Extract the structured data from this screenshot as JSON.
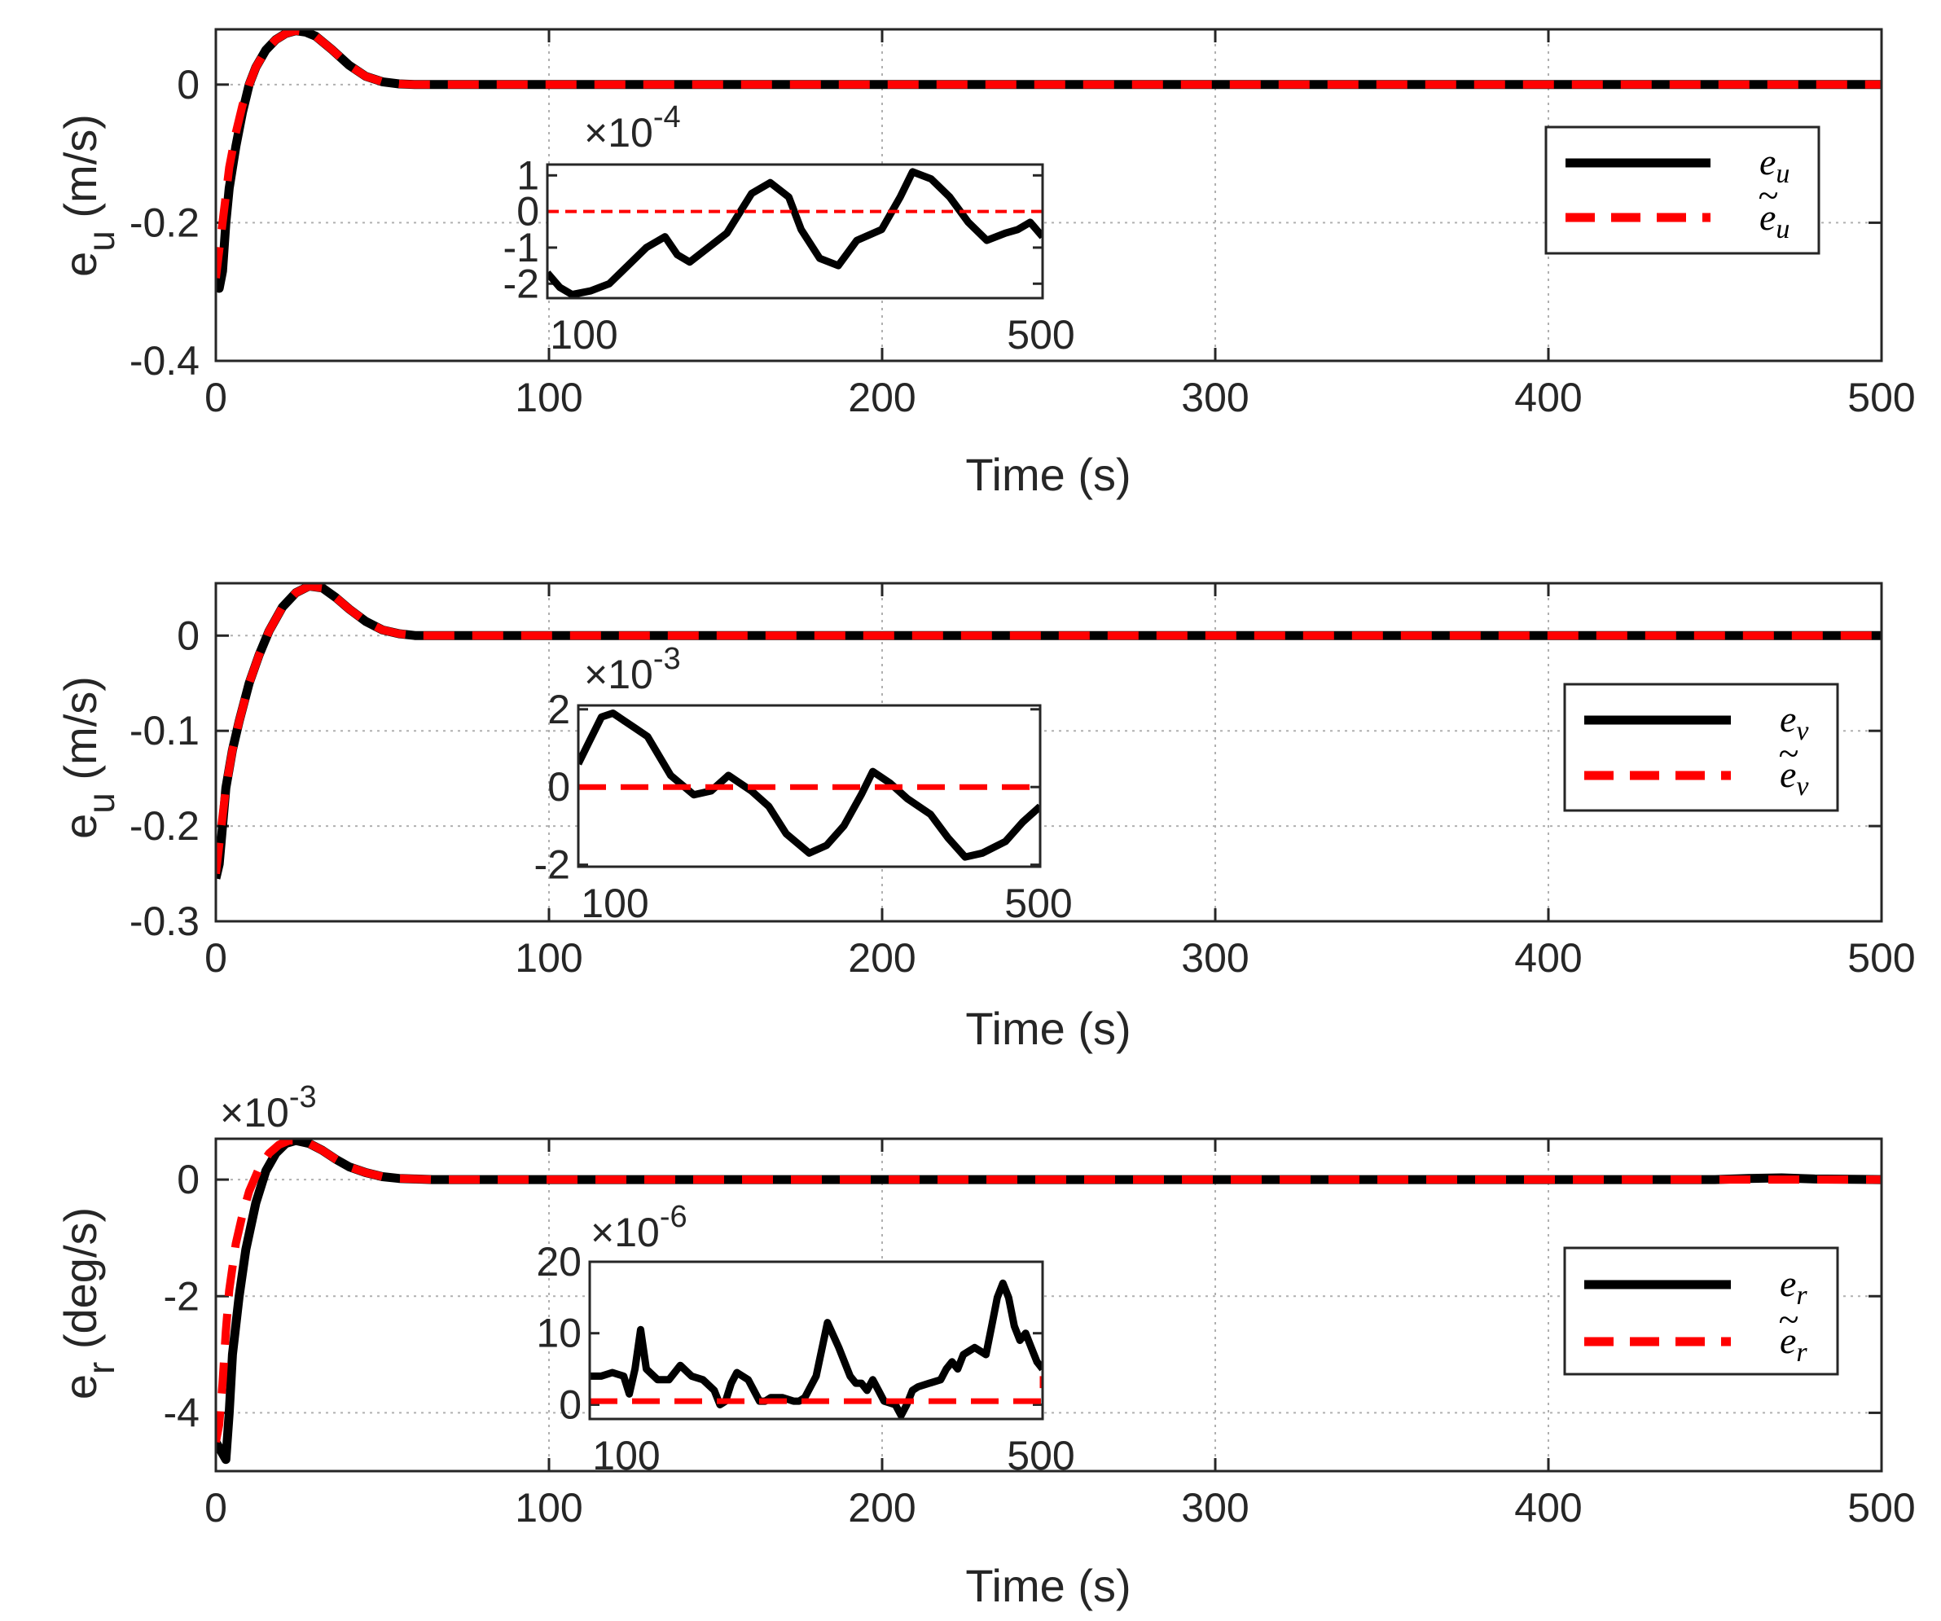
{
  "figure": {
    "colors": {
      "actual": "#000000",
      "estimate": "#ff0000",
      "grid": "#b0b0b0",
      "axis": "#262626"
    }
  },
  "chart_data": [
    {
      "type": "line",
      "id": "eu",
      "xlabel": "Time (s)",
      "ylabel_main": "e",
      "ylabel_sub": "u",
      "ylabel_unit": " (m/s)",
      "xlim": [
        0,
        500
      ],
      "ylim": [
        -0.4,
        0.08
      ],
      "xticks": [
        0,
        100,
        200,
        300,
        400,
        500
      ],
      "xtick_labels": [
        "0",
        "100",
        "200",
        "300",
        "400",
        "500"
      ],
      "yticks": [
        0,
        -0.2,
        -0.4
      ],
      "ytick_labels": [
        "0",
        "-0.2",
        "-0.4"
      ],
      "grid": true,
      "legend_position": "right",
      "series": [
        {
          "name": "e_u",
          "legend_base": "e",
          "legend_sub": "u",
          "tilde": false,
          "style": "solid",
          "x": [
            0,
            1,
            2,
            3,
            4,
            6,
            8,
            10,
            12,
            15,
            18,
            21,
            24,
            27,
            30,
            35,
            40,
            45,
            50,
            55,
            60,
            100,
            200,
            300,
            400,
            500
          ],
          "y": [
            -0.29,
            -0.295,
            -0.27,
            -0.2,
            -0.15,
            -0.09,
            -0.04,
            0.0,
            0.025,
            0.05,
            0.065,
            0.074,
            0.078,
            0.076,
            0.07,
            0.05,
            0.028,
            0.012,
            0.004,
            0.001,
            0.0,
            0.0,
            0.0,
            0.0,
            0.0,
            0.0
          ]
        },
        {
          "name": "e_u estimate",
          "legend_base": "e",
          "legend_sub": "u",
          "tilde": true,
          "style": "dashed",
          "x": [
            0,
            1,
            2,
            3,
            4,
            6,
            8,
            10,
            12,
            15,
            18,
            21,
            24,
            27,
            30,
            35,
            40,
            45,
            50,
            55,
            60,
            100,
            200,
            300,
            400,
            500
          ],
          "y": [
            -0.28,
            -0.24,
            -0.2,
            -0.16,
            -0.12,
            -0.07,
            -0.03,
            0.0,
            0.025,
            0.05,
            0.065,
            0.074,
            0.078,
            0.076,
            0.07,
            0.05,
            0.028,
            0.012,
            0.004,
            0.001,
            0.0,
            0.0,
            0.0,
            0.0,
            0.0,
            0.0
          ]
        }
      ],
      "inset": {
        "multiplier_base": "×10",
        "multiplier_exp": "-4",
        "xlim": [
          100,
          500
        ],
        "ylim": [
          -2.4,
          1.3
        ],
        "xtick_labels": [
          "100",
          "500"
        ],
        "yticks": [
          1,
          0,
          -1,
          -2
        ],
        "ytick_labels": [
          "1",
          "0",
          "-1",
          "-2"
        ],
        "series": [
          {
            "style": "solid",
            "x": [
              100,
              110,
              120,
              135,
              150,
              165,
              180,
              195,
              205,
              215,
              230,
              245,
              265,
              280,
              295,
              305,
              320,
              335,
              350,
              370,
              385,
              395,
              410,
              425,
              440,
              455,
              470,
              480,
              490,
              500
            ],
            "y": [
              -1.7,
              -2.1,
              -2.3,
              -2.2,
              -2.0,
              -1.5,
              -1.0,
              -0.7,
              -1.2,
              -1.4,
              -1.0,
              -0.6,
              0.5,
              0.8,
              0.4,
              -0.5,
              -1.3,
              -1.5,
              -0.8,
              -0.5,
              0.4,
              1.1,
              0.9,
              0.4,
              -0.3,
              -0.8,
              -0.6,
              -0.5,
              -0.3,
              -0.7
            ]
          },
          {
            "style": "dashed",
            "x": [
              100,
              500
            ],
            "y": [
              0,
              0
            ]
          }
        ]
      }
    },
    {
      "type": "line",
      "id": "ev",
      "xlabel": "Time (s)",
      "ylabel_main": "e",
      "ylabel_sub": "u",
      "ylabel_unit": " (m/s)",
      "xlim": [
        0,
        500
      ],
      "ylim": [
        -0.3,
        0.055
      ],
      "xticks": [
        0,
        100,
        200,
        300,
        400,
        500
      ],
      "xtick_labels": [
        "0",
        "100",
        "200",
        "300",
        "400",
        "500"
      ],
      "yticks": [
        0,
        -0.1,
        -0.2,
        -0.3
      ],
      "ytick_labels": [
        "0",
        "-0.1",
        "-0.2",
        "-0.3"
      ],
      "grid": true,
      "legend_position": "right",
      "series": [
        {
          "name": "e_v",
          "legend_base": "e",
          "legend_sub": "v",
          "tilde": false,
          "style": "solid",
          "x": [
            0,
            1,
            2,
            3,
            5,
            7,
            10,
            13,
            16,
            20,
            24,
            28,
            32,
            36,
            40,
            45,
            50,
            55,
            60,
            65,
            100,
            200,
            300,
            400,
            500
          ],
          "y": [
            -0.255,
            -0.24,
            -0.2,
            -0.16,
            -0.12,
            -0.09,
            -0.05,
            -0.02,
            0.005,
            0.03,
            0.045,
            0.052,
            0.05,
            0.04,
            0.028,
            0.015,
            0.006,
            0.002,
            0.0,
            0.0,
            0.0,
            0.0,
            0.0,
            0.0,
            0.0
          ]
        },
        {
          "name": "e_v estimate",
          "legend_base": "e",
          "legend_sub": "v",
          "tilde": true,
          "style": "dashed",
          "x": [
            0,
            1,
            2,
            3,
            5,
            7,
            10,
            13,
            16,
            20,
            24,
            28,
            32,
            36,
            40,
            45,
            50,
            55,
            60,
            65,
            100,
            200,
            300,
            400,
            500
          ],
          "y": [
            -0.25,
            -0.22,
            -0.19,
            -0.16,
            -0.12,
            -0.09,
            -0.05,
            -0.02,
            0.005,
            0.03,
            0.045,
            0.052,
            0.05,
            0.04,
            0.028,
            0.015,
            0.006,
            0.002,
            0.0,
            0.0,
            0.0,
            0.0,
            0.0,
            0.0,
            0.0
          ]
        }
      ],
      "inset": {
        "multiplier_base": "×10",
        "multiplier_exp": "-3",
        "xlim": [
          100,
          500
        ],
        "ylim": [
          -2.05,
          2.1
        ],
        "xtick_labels": [
          "100",
          "500"
        ],
        "yticks": [
          2,
          0,
          -2
        ],
        "ytick_labels": [
          "2",
          "0",
          "-2"
        ],
        "series": [
          {
            "style": "solid",
            "x": [
              100,
              110,
              120,
              130,
              140,
              150,
              160,
              180,
              200,
              215,
              230,
              250,
              265,
              280,
              300,
              315,
              330,
              345,
              355,
              370,
              385,
              405,
              420,
              435,
              450,
              470,
              485,
              500
            ],
            "y": [
              0.6,
              1.2,
              1.8,
              1.9,
              1.7,
              1.5,
              1.3,
              0.3,
              -0.2,
              -0.1,
              0.3,
              -0.1,
              -0.5,
              -1.2,
              -1.7,
              -1.5,
              -1.0,
              -0.2,
              0.4,
              0.1,
              -0.3,
              -0.7,
              -1.3,
              -1.8,
              -1.7,
              -1.4,
              -0.9,
              -0.5
            ]
          },
          {
            "style": "dashed",
            "x": [
              100,
              500
            ],
            "y": [
              0,
              0
            ]
          }
        ]
      }
    },
    {
      "type": "line",
      "id": "er",
      "xlabel": "Time (s)",
      "ylabel_main": "e",
      "ylabel_sub": "r",
      "ylabel_unit": "  (deg/s)",
      "multiplier_base": "×10",
      "multiplier_exp": "-3",
      "xlim": [
        0,
        500
      ],
      "ylim": [
        -5,
        0.7
      ],
      "xticks": [
        0,
        100,
        200,
        300,
        400,
        500
      ],
      "xtick_labels": [
        "0",
        "100",
        "200",
        "300",
        "400",
        "500"
      ],
      "yticks": [
        0,
        -2,
        -4
      ],
      "ytick_labels": [
        "0",
        "-2",
        "-4"
      ],
      "grid": true,
      "legend_position": "right",
      "series": [
        {
          "name": "e_r",
          "legend_base": "e",
          "legend_sub": "r",
          "tilde": false,
          "style": "solid",
          "x": [
            0,
            2,
            3,
            4,
            5,
            7,
            9,
            12,
            15,
            18,
            21,
            24,
            28,
            32,
            36,
            40,
            45,
            50,
            55,
            60,
            65,
            70,
            100,
            200,
            300,
            400,
            450,
            460,
            470,
            480,
            500
          ],
          "y": [
            -4.5,
            -4.7,
            -4.8,
            -4.0,
            -3.0,
            -2.0,
            -1.2,
            -0.4,
            0.15,
            0.45,
            0.62,
            0.67,
            0.62,
            0.5,
            0.35,
            0.22,
            0.12,
            0.05,
            0.02,
            0.01,
            0.0,
            0.0,
            0.0,
            0.0,
            0.0,
            0.0,
            0.0,
            0.02,
            0.03,
            0.01,
            0.0
          ]
        },
        {
          "name": "e_r estimate",
          "legend_base": "e",
          "legend_sub": "r",
          "tilde": true,
          "style": "dashed",
          "x": [
            0,
            1,
            2,
            3,
            4,
            6,
            8,
            10,
            13,
            16,
            19,
            22,
            25,
            28,
            32,
            36,
            40,
            45,
            50,
            55,
            60,
            65,
            70,
            100,
            200,
            300,
            400,
            500
          ],
          "y": [
            -4.5,
            -4.2,
            -3.5,
            -2.6,
            -1.9,
            -1.1,
            -0.6,
            -0.2,
            0.2,
            0.45,
            0.6,
            0.67,
            0.67,
            0.62,
            0.5,
            0.35,
            0.22,
            0.12,
            0.05,
            0.02,
            0.01,
            0.0,
            0.0,
            0.0,
            0.0,
            0.0,
            0.0,
            0.0
          ]
        }
      ],
      "inset": {
        "multiplier_base": "×10",
        "multiplier_exp": "-6",
        "xlim": [
          100,
          500
        ],
        "ylim": [
          -2,
          20
        ],
        "xtick_labels": [
          "100",
          "500"
        ],
        "yticks": [
          20,
          10,
          0
        ],
        "ytick_labels": [
          "20",
          "10",
          "0"
        ],
        "series": [
          {
            "style": "solid",
            "x": [
              100,
              110,
              120,
              130,
              135,
              140,
              145,
              150,
              160,
              170,
              180,
              190,
              200,
              210,
              215,
              220,
              225,
              230,
              240,
              245,
              250,
              255,
              260,
              270,
              280,
              285,
              290,
              300,
              310,
              320,
              330,
              335,
              340,
              345,
              350,
              355,
              360,
              370,
              375,
              380,
              385,
              390,
              400,
              410,
              415,
              420,
              425,
              430,
              440,
              450,
              455,
              460,
              465,
              470,
              475,
              480,
              485,
              490,
              495,
              500
            ],
            "y": [
              4,
              4,
              4.5,
              4,
              1.5,
              5,
              10.5,
              5,
              3.5,
              3.5,
              5.5,
              4,
              3.5,
              2,
              0,
              0.5,
              3,
              4.5,
              3.5,
              2,
              0.5,
              0.5,
              1,
              1,
              0.5,
              0.5,
              1,
              4,
              11.5,
              8,
              4,
              3,
              3,
              2,
              3.5,
              2,
              0.5,
              0,
              -1.5,
              0,
              2,
              2.5,
              3,
              3.5,
              5,
              6,
              5,
              7,
              8,
              7,
              11,
              15,
              17,
              15,
              11,
              9,
              10,
              8,
              6,
              5
            ]
          },
          {
            "style": "dashed",
            "x": [
              100,
              200,
              300,
              400,
              495,
              500,
              500
            ],
            "y": [
              0.5,
              0.5,
              0.5,
              0.5,
              0.5,
              0.5,
              4
            ]
          }
        ]
      }
    }
  ]
}
